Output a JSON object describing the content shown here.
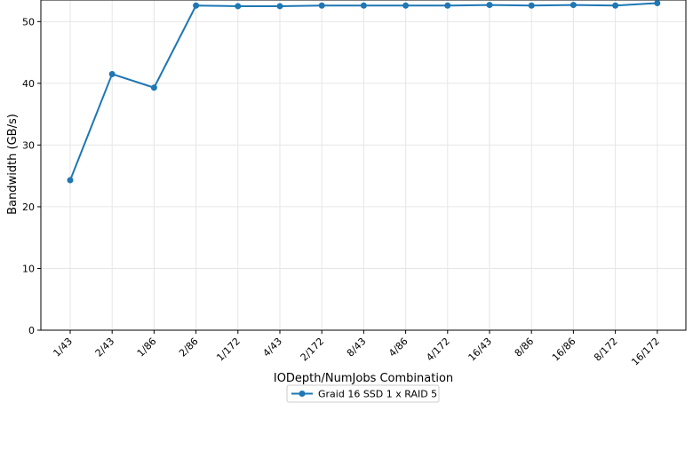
{
  "chart_data": {
    "type": "line",
    "title": "",
    "xlabel": "IODepth/NumJobs Combination",
    "ylabel": "Bandwidth (GB/s)",
    "categories": [
      "1/43",
      "2/43",
      "1/86",
      "2/86",
      "1/172",
      "4/43",
      "2/172",
      "8/43",
      "4/86",
      "4/172",
      "16/43",
      "8/86",
      "16/86",
      "8/172",
      "16/172"
    ],
    "series": [
      {
        "name": "Graid 16 SSD 1 x RAID 5",
        "color": "#1f77b4",
        "marker": "circle",
        "values": [
          24.3,
          41.5,
          39.3,
          52.6,
          52.5,
          52.5,
          52.6,
          52.6,
          52.6,
          52.6,
          52.7,
          52.6,
          52.7,
          52.6,
          53.0
        ]
      }
    ],
    "ylim": [
      0,
      53.5
    ],
    "yticks": [
      0,
      10,
      20,
      30,
      40,
      50
    ],
    "grid": true,
    "legend_position": "bottom-center"
  }
}
